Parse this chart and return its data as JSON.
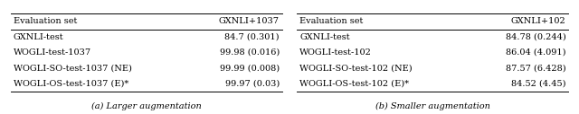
{
  "table_a": {
    "header": [
      "Evaluation set",
      "GXNLI+1037"
    ],
    "rows": [
      [
        "GXNLI-test",
        "84.7 (0.301)"
      ],
      [
        "WOGLI-test-1037",
        "99.98 (0.016)"
      ],
      [
        "WOGLI-SO-test-1037 (NE)",
        "99.99 (0.008)"
      ],
      [
        "WOGLI-OS-test-1037 (E)*",
        "99.97 (0.03)"
      ]
    ],
    "caption": "(a) Larger augmentation"
  },
  "table_b": {
    "header": [
      "Evaluation set",
      "GXNLI+102"
    ],
    "rows": [
      [
        "GXNLI-test",
        "84.78 (0.244)"
      ],
      [
        "WOGLI-test-102",
        "86.04 (4.091)"
      ],
      [
        "WOGLI-SO-test-102 (NE)",
        "87.57 (6.428)"
      ],
      [
        "WOGLI-OS-test-102 (E)*",
        "84.52 (4.45)"
      ]
    ],
    "caption": "(b) Smaller augmentation"
  },
  "font_size": 7.0,
  "caption_font_size": 7.0,
  "bg_color": "#ffffff",
  "line_color": "#000000",
  "text_color": "#000000"
}
